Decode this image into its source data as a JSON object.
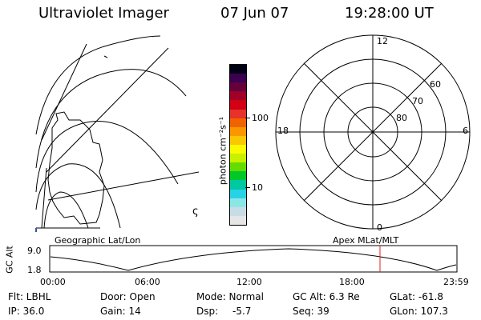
{
  "header": {
    "title": "Ultraviolet Imager",
    "date": "07 Jun 07",
    "time": "19:28:00 UT"
  },
  "geo_panel": {
    "label": "Geographic Lat/Lon",
    "glyph": "ς"
  },
  "colorbar": {
    "unit_label": "photon cm⁻²s⁻¹",
    "tick_100": "100",
    "tick_10": "10",
    "colors": [
      "#e6e6e6",
      "#c8dce6",
      "#8ce6e6",
      "#28d2e6",
      "#00c8a0",
      "#00c828",
      "#64dc00",
      "#c8f000",
      "#fafa00",
      "#fac800",
      "#fa9600",
      "#f06400",
      "#e63228",
      "#d20014",
      "#a00028",
      "#64003c",
      "#3c0050",
      "#000014"
    ]
  },
  "polar_panel": {
    "label": "Apex MLat/MLT",
    "mlt_top": "12",
    "mlt_bottom": "0",
    "mlt_left": "18",
    "mlt_right": "6",
    "lat_60": "60",
    "lat_70": "70",
    "lat_80": "80"
  },
  "timeline": {
    "y_label": "GC Alt",
    "y_top": "9.0",
    "y_bottom": "1.8",
    "x_ticks": [
      "00:00",
      "06:00",
      "12:00",
      "18:00",
      "23:59"
    ],
    "marker_color": "#dd2222"
  },
  "info": {
    "flt": "Flt: LBHL",
    "door": "Door: Open",
    "mode": "Mode: Normal",
    "gc_alt": "GC Alt: 6.3 Re",
    "glat": "GLat: -61.8",
    "ip": "IP: 36.0",
    "gain": "Gain: 14",
    "dsp": "Dsp:",
    "dsp_val": "-5.7",
    "seq": "Seq: 39",
    "glon": "GLon: 107.3"
  }
}
